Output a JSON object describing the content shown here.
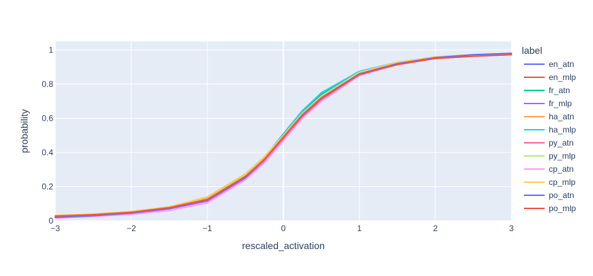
{
  "chart_data": {
    "type": "line",
    "title": "",
    "xlabel": "rescaled_activation",
    "ylabel": "probability",
    "xlim": [
      -3,
      3
    ],
    "ylim": [
      0,
      1.05
    ],
    "xticks": [
      -3,
      -2,
      -1,
      0,
      1,
      2,
      3
    ],
    "xtick_labels": [
      "−3",
      "−2",
      "−1",
      "0",
      "1",
      "2",
      "3"
    ],
    "yticks": [
      0,
      0.2,
      0.4,
      0.6,
      0.8,
      1
    ],
    "ytick_labels": [
      "0",
      "0.2",
      "0.4",
      "0.6",
      "0.8",
      "1"
    ],
    "grid": true,
    "plot_background": "#e5ecf6",
    "legend_title": "label",
    "legend_position": "right",
    "series": [
      {
        "name": "en_atn",
        "color": "#636efa",
        "x": [
          -3,
          -2.5,
          -2,
          -1.5,
          -1,
          -0.5,
          -0.25,
          0,
          0.25,
          0.5,
          1,
          1.5,
          2,
          2.5,
          3
        ],
        "y": [
          0.025,
          0.035,
          0.05,
          0.075,
          0.12,
          0.26,
          0.36,
          0.49,
          0.62,
          0.72,
          0.86,
          0.92,
          0.955,
          0.967,
          0.975
        ]
      },
      {
        "name": "en_mlp",
        "color": "#ef553b",
        "x": [
          -3,
          -2.5,
          -2,
          -1.5,
          -1,
          -0.5,
          -0.25,
          0,
          0.25,
          0.5,
          1,
          1.5,
          2,
          2.5,
          3
        ],
        "y": [
          0.03,
          0.038,
          0.052,
          0.078,
          0.125,
          0.255,
          0.355,
          0.485,
          0.615,
          0.715,
          0.855,
          0.915,
          0.952,
          0.965,
          0.973
        ]
      },
      {
        "name": "fr_atn",
        "color": "#00cc96",
        "x": [
          -3,
          -2.5,
          -2,
          -1.5,
          -1,
          -0.5,
          -0.25,
          0,
          0.25,
          0.5,
          1,
          1.5,
          2,
          2.5,
          3
        ],
        "y": [
          0.028,
          0.036,
          0.05,
          0.076,
          0.13,
          0.27,
          0.37,
          0.5,
          0.635,
          0.74,
          0.87,
          0.925,
          0.957,
          0.968,
          0.975
        ]
      },
      {
        "name": "fr_mlp",
        "color": "#ab63fa",
        "x": [
          -3,
          -2.5,
          -2,
          -1.5,
          -1,
          -0.5,
          -0.25,
          0,
          0.25,
          0.5,
          1,
          1.5,
          2,
          2.5,
          3
        ],
        "y": [
          0.02,
          0.03,
          0.045,
          0.07,
          0.115,
          0.25,
          0.35,
          0.48,
          0.61,
          0.71,
          0.855,
          0.915,
          0.952,
          0.966,
          0.976
        ]
      },
      {
        "name": "ha_atn",
        "color": "#ffa15a",
        "x": [
          -3,
          -2.5,
          -2,
          -1.5,
          -1,
          -0.5,
          -0.25,
          0,
          0.25,
          0.5,
          1,
          1.5,
          2,
          2.5,
          3
        ],
        "y": [
          0.03,
          0.038,
          0.052,
          0.08,
          0.135,
          0.27,
          0.37,
          0.5,
          0.63,
          0.73,
          0.87,
          0.925,
          0.958,
          0.97,
          0.978
        ]
      },
      {
        "name": "ha_mlp",
        "color": "#19d3f3",
        "x": [
          -3,
          -2.5,
          -2,
          -1.5,
          -1,
          -0.5,
          -0.25,
          0,
          0.25,
          0.5,
          1,
          1.5,
          2,
          2.5,
          3
        ],
        "y": [
          0.025,
          0.034,
          0.048,
          0.074,
          0.125,
          0.265,
          0.37,
          0.51,
          0.645,
          0.75,
          0.875,
          0.928,
          0.958,
          0.968,
          0.976
        ]
      },
      {
        "name": "py_atn",
        "color": "#ff6692",
        "x": [
          -3,
          -2.5,
          -2,
          -1.5,
          -1,
          -0.5,
          -0.25,
          0,
          0.25,
          0.5,
          1,
          1.5,
          2,
          2.5,
          3
        ],
        "y": [
          0.022,
          0.032,
          0.047,
          0.072,
          0.118,
          0.255,
          0.355,
          0.485,
          0.61,
          0.71,
          0.855,
          0.913,
          0.95,
          0.963,
          0.972
        ]
      },
      {
        "name": "py_mlp",
        "color": "#b6e880",
        "x": [
          -3,
          -2.5,
          -2,
          -1.5,
          -1,
          -0.5,
          -0.25,
          0,
          0.25,
          0.5,
          1,
          1.5,
          2,
          2.5,
          3
        ],
        "y": [
          0.026,
          0.035,
          0.05,
          0.077,
          0.128,
          0.265,
          0.365,
          0.495,
          0.625,
          0.725,
          0.865,
          0.922,
          0.955,
          0.967,
          0.975
        ]
      },
      {
        "name": "cp_atn",
        "color": "#ff97ff",
        "x": [
          -3,
          -2.5,
          -2,
          -1.5,
          -1,
          -0.5,
          -0.25,
          0,
          0.25,
          0.5,
          1,
          1.5,
          2,
          2.5,
          3
        ],
        "y": [
          0.015,
          0.025,
          0.038,
          0.06,
          0.105,
          0.24,
          0.34,
          0.47,
          0.6,
          0.7,
          0.85,
          0.915,
          0.95,
          0.963,
          0.972
        ]
      },
      {
        "name": "cp_mlp",
        "color": "#fecb52",
        "x": [
          -3,
          -2.5,
          -2,
          -1.5,
          -1,
          -0.5,
          -0.25,
          0,
          0.25,
          0.5,
          1,
          1.5,
          2,
          2.5,
          3
        ],
        "y": [
          0.032,
          0.04,
          0.055,
          0.082,
          0.14,
          0.275,
          0.375,
          0.5,
          0.63,
          0.73,
          0.87,
          0.928,
          0.96,
          0.972,
          0.98
        ]
      },
      {
        "name": "po_atn",
        "color": "#636efa",
        "x": [
          -3,
          -2.5,
          -2,
          -1.5,
          -1,
          -0.5,
          -0.25,
          0,
          0.25,
          0.5,
          1,
          1.5,
          2,
          2.5,
          3
        ],
        "y": [
          0.02,
          0.03,
          0.045,
          0.072,
          0.12,
          0.255,
          0.36,
          0.49,
          0.62,
          0.72,
          0.86,
          0.92,
          0.955,
          0.972,
          0.98
        ]
      },
      {
        "name": "po_mlp",
        "color": "#ef553b",
        "x": [
          -3,
          -2.5,
          -2,
          -1.5,
          -1,
          -0.5,
          -0.25,
          0,
          0.25,
          0.5,
          1,
          1.5,
          2,
          2.5,
          3
        ],
        "y": [
          0.028,
          0.036,
          0.05,
          0.077,
          0.125,
          0.26,
          0.36,
          0.49,
          0.615,
          0.715,
          0.855,
          0.915,
          0.95,
          0.963,
          0.972
        ]
      }
    ]
  }
}
